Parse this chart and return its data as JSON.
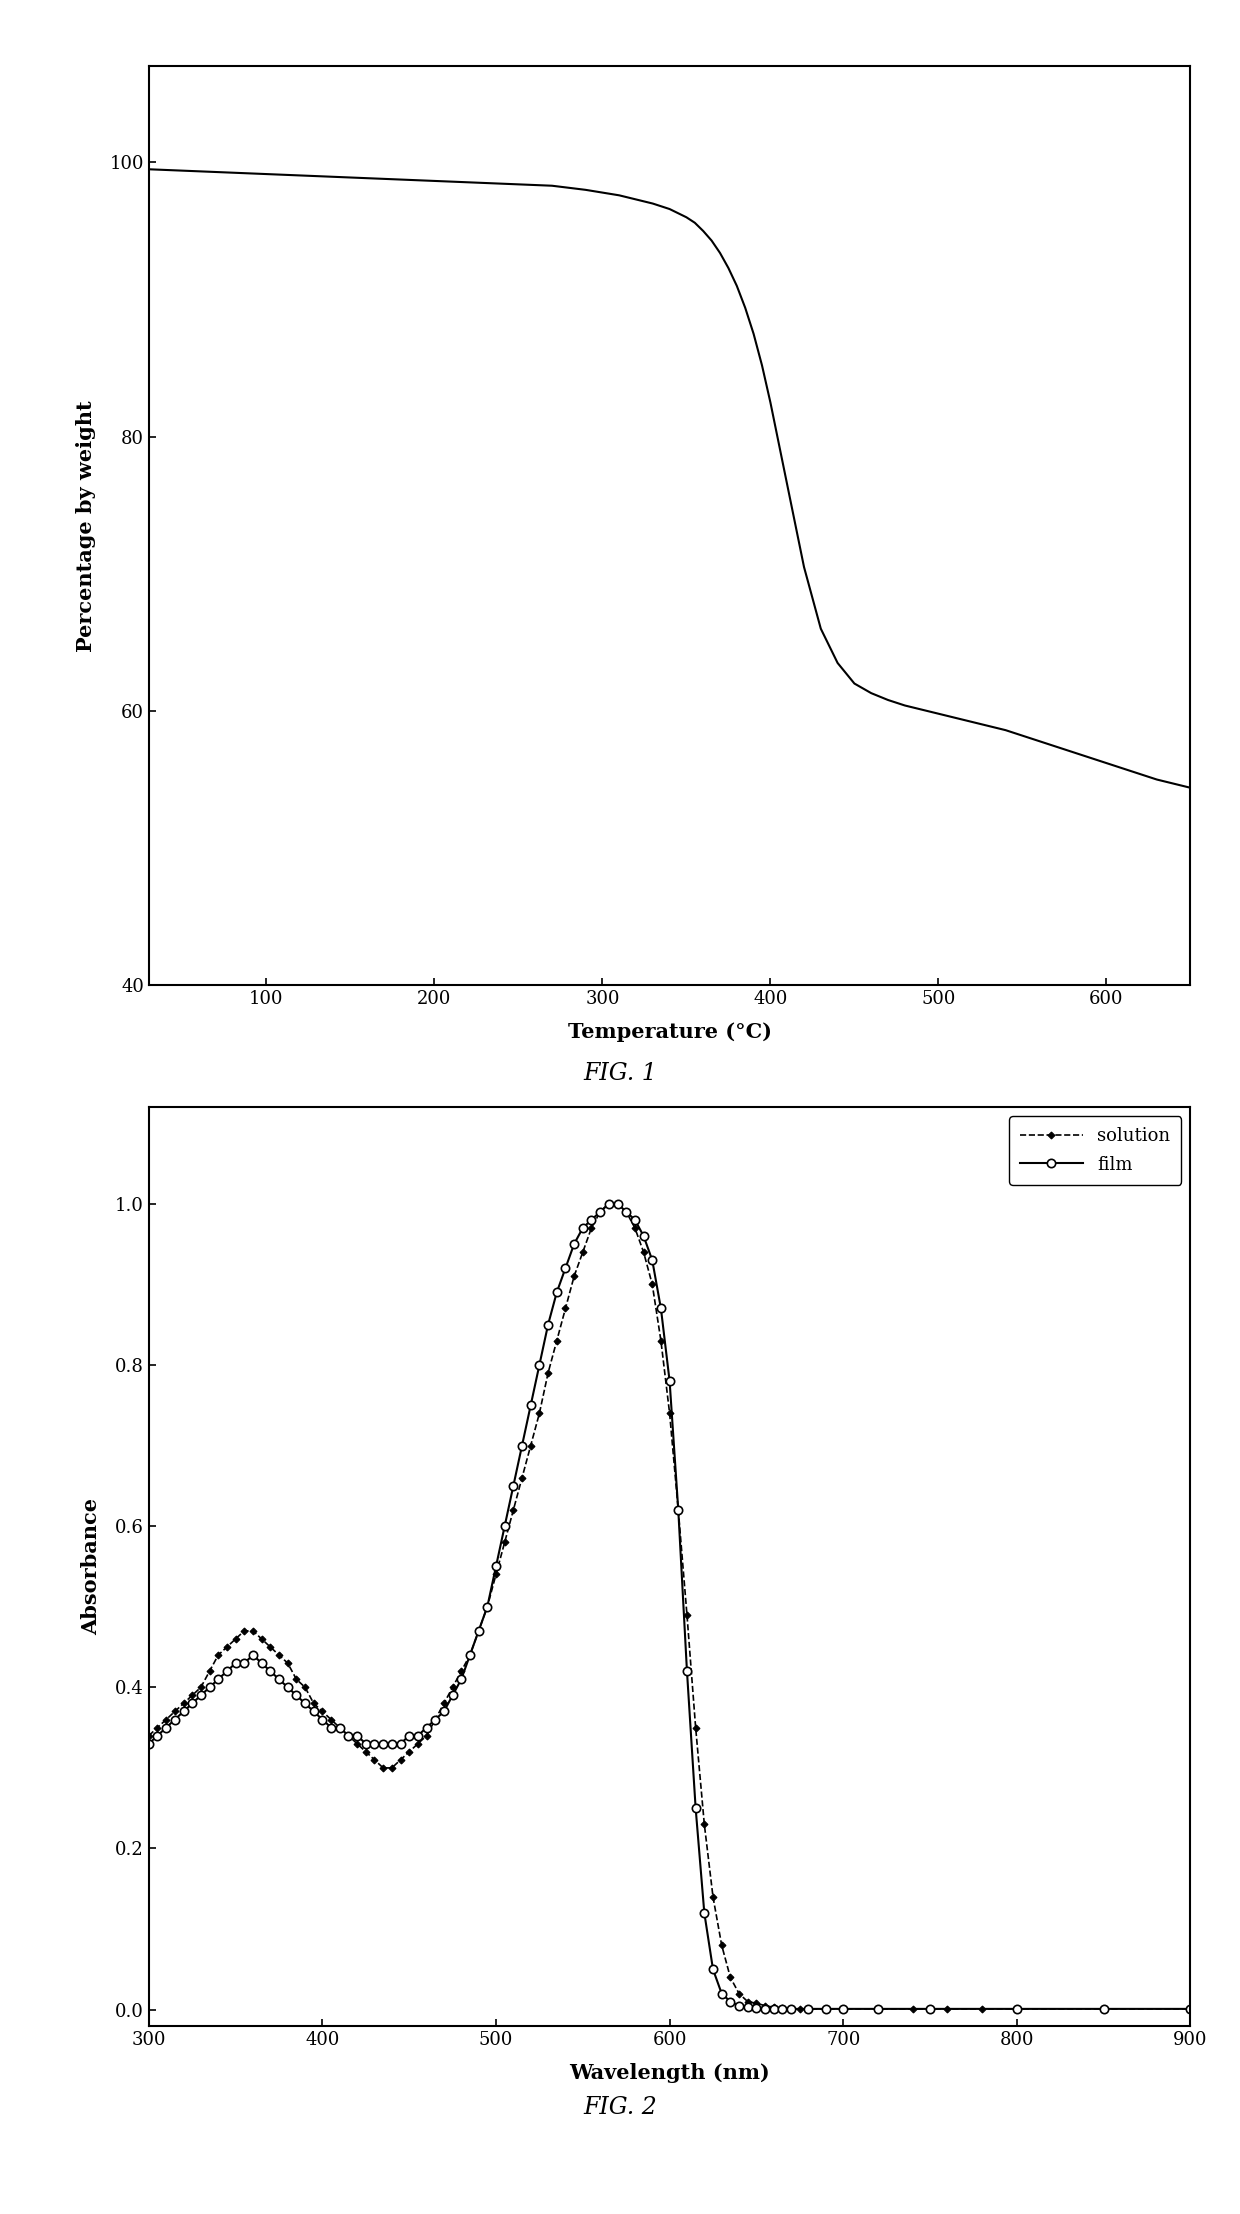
{
  "fig1": {
    "caption": "FIG. 1",
    "xlabel": "Temperature (°C)",
    "ylabel": "Percentage by weight",
    "xlim": [
      30,
      650
    ],
    "ylim": [
      40,
      107
    ],
    "xticks": [
      100,
      200,
      300,
      400,
      500,
      600
    ],
    "yticks": [
      40,
      60,
      80,
      100
    ],
    "tga_x": [
      30,
      50,
      70,
      90,
      110,
      130,
      150,
      170,
      190,
      210,
      230,
      250,
      270,
      290,
      310,
      330,
      340,
      350,
      355,
      360,
      365,
      370,
      375,
      380,
      385,
      390,
      395,
      400,
      410,
      420,
      430,
      440,
      450,
      460,
      470,
      480,
      490,
      500,
      510,
      520,
      530,
      540,
      550,
      560,
      570,
      580,
      590,
      600,
      610,
      620,
      630,
      640,
      650
    ],
    "tga_y": [
      99.5,
      99.4,
      99.3,
      99.2,
      99.1,
      99.0,
      98.9,
      98.8,
      98.7,
      98.6,
      98.5,
      98.4,
      98.3,
      98.0,
      97.6,
      97.0,
      96.6,
      96.0,
      95.6,
      95.0,
      94.3,
      93.4,
      92.3,
      91.0,
      89.4,
      87.5,
      85.2,
      82.5,
      76.5,
      70.5,
      66.0,
      63.5,
      62.0,
      61.3,
      60.8,
      60.4,
      60.1,
      59.8,
      59.5,
      59.2,
      58.9,
      58.6,
      58.2,
      57.8,
      57.4,
      57.0,
      56.6,
      56.2,
      55.8,
      55.4,
      55.0,
      54.7,
      54.4
    ]
  },
  "fig2": {
    "caption": "FIG. 2",
    "xlabel": "Wavelength (nm)",
    "ylabel": "Absorbance",
    "xlim": [
      300,
      900
    ],
    "ylim": [
      -0.02,
      1.12
    ],
    "xticks": [
      300,
      400,
      500,
      600,
      700,
      800,
      900
    ],
    "yticks": [
      0.0,
      0.2,
      0.4,
      0.6,
      0.8,
      1.0
    ],
    "solution_x": [
      300,
      305,
      310,
      315,
      320,
      325,
      330,
      335,
      340,
      345,
      350,
      355,
      360,
      365,
      370,
      375,
      380,
      385,
      390,
      395,
      400,
      405,
      410,
      415,
      420,
      425,
      430,
      435,
      440,
      445,
      450,
      455,
      460,
      465,
      470,
      475,
      480,
      485,
      490,
      495,
      500,
      505,
      510,
      515,
      520,
      525,
      530,
      535,
      540,
      545,
      550,
      555,
      560,
      565,
      570,
      575,
      580,
      585,
      590,
      595,
      600,
      605,
      610,
      615,
      620,
      625,
      630,
      635,
      640,
      645,
      650,
      655,
      660,
      665,
      670,
      675,
      680,
      690,
      700,
      720,
      740,
      760,
      780,
      800,
      850,
      900
    ],
    "solution_y": [
      0.34,
      0.35,
      0.36,
      0.37,
      0.38,
      0.39,
      0.4,
      0.42,
      0.44,
      0.45,
      0.46,
      0.47,
      0.47,
      0.46,
      0.45,
      0.44,
      0.43,
      0.41,
      0.4,
      0.38,
      0.37,
      0.36,
      0.35,
      0.34,
      0.33,
      0.32,
      0.31,
      0.3,
      0.3,
      0.31,
      0.32,
      0.33,
      0.34,
      0.36,
      0.38,
      0.4,
      0.42,
      0.44,
      0.47,
      0.5,
      0.54,
      0.58,
      0.62,
      0.66,
      0.7,
      0.74,
      0.79,
      0.83,
      0.87,
      0.91,
      0.94,
      0.97,
      0.99,
      1.0,
      1.0,
      0.99,
      0.97,
      0.94,
      0.9,
      0.83,
      0.74,
      0.62,
      0.49,
      0.35,
      0.23,
      0.14,
      0.08,
      0.04,
      0.02,
      0.01,
      0.008,
      0.005,
      0.003,
      0.002,
      0.001,
      0.001,
      0.001,
      0.001,
      0.001,
      0.001,
      0.001,
      0.001,
      0.001,
      0.001,
      0.001,
      0.001
    ],
    "film_x": [
      300,
      305,
      310,
      315,
      320,
      325,
      330,
      335,
      340,
      345,
      350,
      355,
      360,
      365,
      370,
      375,
      380,
      385,
      390,
      395,
      400,
      405,
      410,
      415,
      420,
      425,
      430,
      435,
      440,
      445,
      450,
      455,
      460,
      465,
      470,
      475,
      480,
      485,
      490,
      495,
      500,
      505,
      510,
      515,
      520,
      525,
      530,
      535,
      540,
      545,
      550,
      555,
      560,
      565,
      570,
      575,
      580,
      585,
      590,
      595,
      600,
      605,
      610,
      615,
      620,
      625,
      630,
      635,
      640,
      645,
      650,
      655,
      660,
      665,
      670,
      680,
      690,
      700,
      720,
      750,
      800,
      850,
      900
    ],
    "film_y": [
      0.33,
      0.34,
      0.35,
      0.36,
      0.37,
      0.38,
      0.39,
      0.4,
      0.41,
      0.42,
      0.43,
      0.43,
      0.44,
      0.43,
      0.42,
      0.41,
      0.4,
      0.39,
      0.38,
      0.37,
      0.36,
      0.35,
      0.35,
      0.34,
      0.34,
      0.33,
      0.33,
      0.33,
      0.33,
      0.33,
      0.34,
      0.34,
      0.35,
      0.36,
      0.37,
      0.39,
      0.41,
      0.44,
      0.47,
      0.5,
      0.55,
      0.6,
      0.65,
      0.7,
      0.75,
      0.8,
      0.85,
      0.89,
      0.92,
      0.95,
      0.97,
      0.98,
      0.99,
      1.0,
      1.0,
      0.99,
      0.98,
      0.96,
      0.93,
      0.87,
      0.78,
      0.62,
      0.42,
      0.25,
      0.12,
      0.05,
      0.02,
      0.01,
      0.005,
      0.003,
      0.002,
      0.001,
      0.001,
      0.001,
      0.001,
      0.001,
      0.001,
      0.001,
      0.001,
      0.001,
      0.001,
      0.001,
      0.001
    ]
  },
  "background_color": "#ffffff"
}
